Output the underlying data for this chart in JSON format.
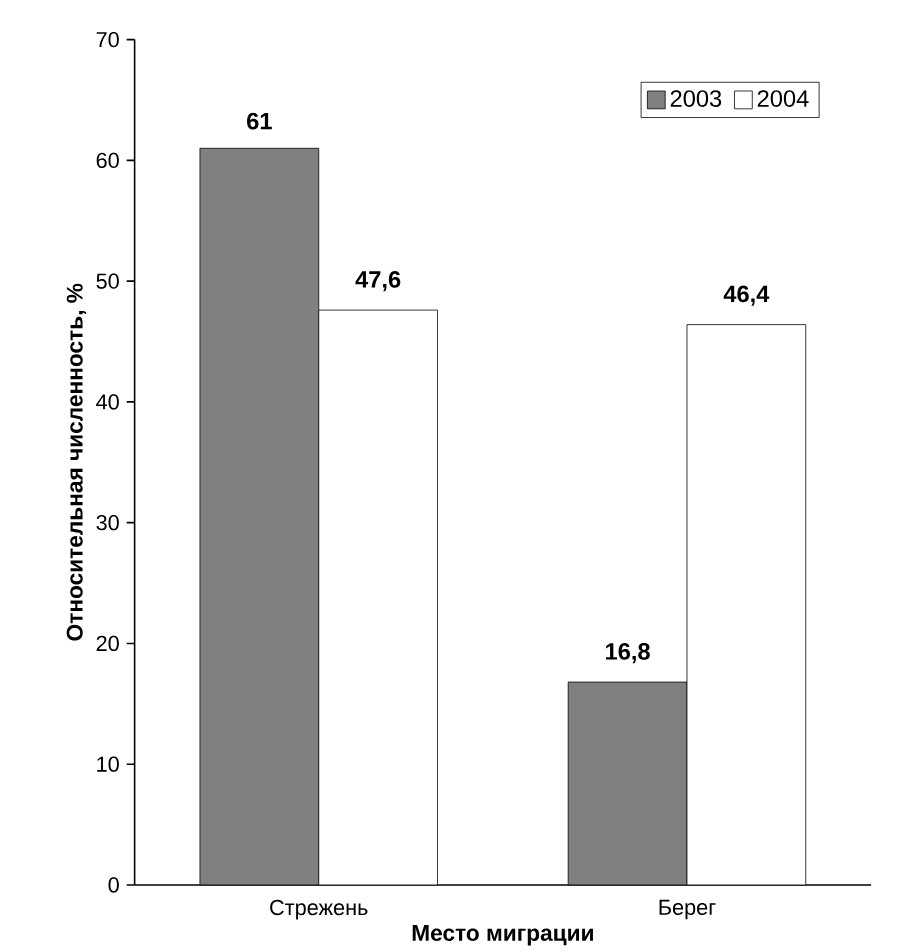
{
  "chart_data": {
    "type": "bar",
    "xlabel": "Место миграции",
    "ylabel": "Относительная численность, %",
    "categories": [
      "Стрежень",
      "Берег"
    ],
    "series": [
      {
        "name": "2003",
        "color": "#808080",
        "values": [
          61,
          16.8
        ],
        "value_labels": [
          "61",
          "16,8"
        ]
      },
      {
        "name": "2004",
        "color": "#ffffff",
        "values": [
          47.6,
          46.4
        ],
        "value_labels": [
          "47,6",
          "46,4"
        ]
      }
    ],
    "ylim": [
      0,
      70
    ],
    "yticks": [
      0,
      10,
      20,
      30,
      40,
      50,
      60,
      70
    ],
    "legend": "top right",
    "grid": false
  }
}
